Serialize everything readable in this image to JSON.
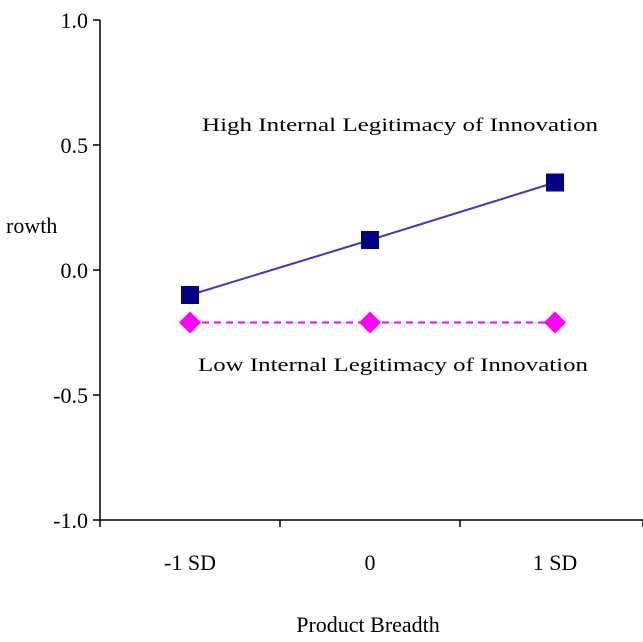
{
  "chart_data": {
    "type": "line",
    "categories": [
      "-1 SD",
      "0",
      "1 SD"
    ],
    "xlabel": "Product Breadth",
    "ylabel": "rowth",
    "ylim": [
      -1.0,
      1.0
    ],
    "yticks": [
      "1.0",
      "0.5",
      "0.0",
      "-0.5",
      "-1.0"
    ],
    "ytick_values": [
      1.0,
      0.5,
      0.0,
      -0.5,
      -1.0
    ],
    "grid": false,
    "series": [
      {
        "values": [
          -0.1,
          0.12,
          0.35
        ],
        "color": "#000080",
        "line_color": "#3c3cb4",
        "marker": "square",
        "line_style": "solid"
      },
      {
        "values": [
          -0.21,
          -0.21,
          -0.21
        ],
        "color": "#ff00ff",
        "line_color": "#ff00ff",
        "marker": "diamond",
        "line_style": "dashed"
      }
    ],
    "annotations": [
      {
        "text": "High Internal Legitimacy of Innovation",
        "series": 0
      },
      {
        "text": "Low Internal Legitimacy of Innovation",
        "series": 1
      }
    ]
  }
}
